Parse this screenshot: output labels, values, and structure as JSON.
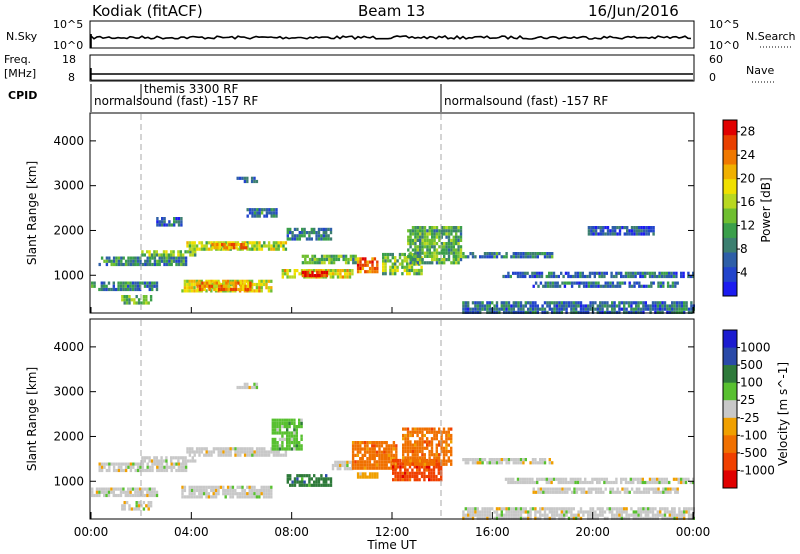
{
  "header": {
    "station": "Kodiak (fitACF)",
    "beam": "Beam 13",
    "date": "16/Jun/2016"
  },
  "sky_panel": {
    "left_label": "N.Sky",
    "left_ticks": [
      "10^5",
      "10^0"
    ],
    "right_ticks": [
      "10^5",
      "10^0"
    ],
    "right_label": "N.Search"
  },
  "freq_panel": {
    "left_label_1": "Freq.",
    "left_label_2": "[MHz]",
    "left_ticks": [
      "18",
      "8"
    ],
    "right_ticks": [
      "60",
      "0"
    ],
    "right_label": "Nave"
  },
  "cpid_panel": {
    "label": "CPID",
    "programs": [
      {
        "name": "normalsound (fast) -157 RF",
        "start_hour": 0.0
      },
      {
        "name": "themis 3300 RF",
        "start_hour": 2.0
      },
      {
        "name": "normalsound (fast) -157 RF",
        "start_hour": 14.0
      }
    ]
  },
  "chart_data": [
    {
      "type": "heatmap",
      "panel": "power",
      "xlabel": "",
      "ylabel": "Slant Range [km]",
      "xlim_hours": [
        0,
        24
      ],
      "ylim": [
        180,
        4600
      ],
      "y_ticks": [
        1000,
        2000,
        3000,
        4000
      ],
      "colorbar": {
        "label": "Power [dB]",
        "ticks": [
          4,
          8,
          12,
          16,
          20,
          24,
          28
        ],
        "range": [
          0,
          30
        ],
        "colors": [
          "#1c1cf0",
          "#2244cc",
          "#2e5fa8",
          "#3c7f70",
          "#3a9f4a",
          "#6fbf30",
          "#b8d820",
          "#f0e000",
          "#f0b000",
          "#f07800",
          "#e84000",
          "#e00000"
        ]
      },
      "regions": [
        {
          "t0": 0.0,
          "t1": 2.6,
          "r0": 680,
          "r1": 860,
          "level": 8
        },
        {
          "t0": 1.2,
          "t1": 2.4,
          "r0": 360,
          "r1": 560,
          "level": 12
        },
        {
          "t0": 0.3,
          "t1": 3.8,
          "r0": 1260,
          "r1": 1420,
          "level": 9
        },
        {
          "t0": 2.0,
          "t1": 4.2,
          "r0": 1420,
          "r1": 1560,
          "level": 14
        },
        {
          "t0": 3.6,
          "t1": 7.2,
          "r0": 640,
          "r1": 900,
          "level": 18
        },
        {
          "t0": 4.2,
          "t1": 6.4,
          "r0": 700,
          "r1": 860,
          "level": 22
        },
        {
          "t0": 3.8,
          "t1": 7.8,
          "r0": 1560,
          "r1": 1760,
          "level": 16
        },
        {
          "t0": 4.8,
          "t1": 6.2,
          "r0": 1600,
          "r1": 1720,
          "level": 22
        },
        {
          "t0": 7.6,
          "t1": 10.4,
          "r0": 960,
          "r1": 1140,
          "level": 18
        },
        {
          "t0": 8.4,
          "t1": 9.4,
          "r0": 1000,
          "r1": 1100,
          "level": 28
        },
        {
          "t0": 8.4,
          "t1": 10.6,
          "r0": 1260,
          "r1": 1460,
          "level": 12
        },
        {
          "t0": 7.8,
          "t1": 9.6,
          "r0": 1800,
          "r1": 2060,
          "level": 8
        },
        {
          "t0": 10.6,
          "t1": 11.4,
          "r0": 1100,
          "r1": 1400,
          "level": 24
        },
        {
          "t0": 11.6,
          "t1": 13.2,
          "r0": 1000,
          "r1": 1500,
          "level": 14
        },
        {
          "t0": 12.6,
          "t1": 14.8,
          "r0": 1300,
          "r1": 2100,
          "level": 12
        },
        {
          "t0": 14.8,
          "t1": 18.4,
          "r0": 1380,
          "r1": 1520,
          "level": 8
        },
        {
          "t0": 16.4,
          "t1": 24.0,
          "r0": 960,
          "r1": 1080,
          "level": 7
        },
        {
          "t0": 17.6,
          "t1": 23.4,
          "r0": 760,
          "r1": 860,
          "level": 7
        },
        {
          "t0": 14.8,
          "t1": 24.0,
          "r0": 200,
          "r1": 420,
          "level": 7
        },
        {
          "t0": 6.2,
          "t1": 7.4,
          "r0": 2300,
          "r1": 2500,
          "level": 8
        },
        {
          "t0": 5.8,
          "t1": 6.6,
          "r0": 3060,
          "r1": 3200,
          "level": 9
        },
        {
          "t0": 2.6,
          "t1": 3.6,
          "r0": 2100,
          "r1": 2300,
          "level": 6
        },
        {
          "t0": 19.8,
          "t1": 22.4,
          "r0": 1900,
          "r1": 2100,
          "level": 5
        }
      ]
    },
    {
      "type": "heatmap",
      "panel": "velocity",
      "xlabel": "Time UT",
      "ylabel": "Slant Range [km]",
      "xlim_hours": [
        0,
        24
      ],
      "x_ticks": [
        "00:00",
        "04:00",
        "08:00",
        "12:00",
        "16:00",
        "20:00",
        "00:00"
      ],
      "ylim": [
        180,
        4600
      ],
      "y_ticks": [
        1000,
        2000,
        3000,
        4000
      ],
      "colorbar": {
        "label": "Velocity [m s^-1]",
        "ticks": [
          "1000",
          "500",
          "100",
          "25",
          "-25",
          "-100",
          "-500",
          "-1000"
        ],
        "colors": [
          "#1c1cd0",
          "#2a4aa8",
          "#2e7a3a",
          "#58c030",
          "#c8c8c8",
          "#f0a000",
          "#f07000",
          "#f04000",
          "#e00000"
        ]
      },
      "regions": [
        {
          "t0": 0.0,
          "t1": 2.6,
          "r0": 680,
          "r1": 860,
          "c": 4
        },
        {
          "t0": 1.2,
          "t1": 2.4,
          "r0": 360,
          "r1": 560,
          "c": 4
        },
        {
          "t0": 0.3,
          "t1": 3.8,
          "r0": 1260,
          "r1": 1420,
          "c": 4
        },
        {
          "t0": 2.0,
          "t1": 4.2,
          "r0": 1420,
          "r1": 1560,
          "c": 4
        },
        {
          "t0": 3.6,
          "t1": 7.2,
          "r0": 640,
          "r1": 900,
          "c": 4
        },
        {
          "t0": 3.8,
          "t1": 7.8,
          "r0": 1560,
          "r1": 1760,
          "c": 4
        },
        {
          "t0": 7.2,
          "t1": 8.4,
          "r0": 1700,
          "r1": 2400,
          "c": 3
        },
        {
          "t0": 7.8,
          "t1": 9.6,
          "r0": 900,
          "r1": 1160,
          "c": 2
        },
        {
          "t0": 9.6,
          "t1": 10.4,
          "r0": 1260,
          "r1": 1460,
          "c": 4
        },
        {
          "t0": 10.4,
          "t1": 12.2,
          "r0": 1300,
          "r1": 1900,
          "c": 6
        },
        {
          "t0": 12.0,
          "t1": 14.0,
          "r0": 1000,
          "r1": 1500,
          "c": 7
        },
        {
          "t0": 12.4,
          "t1": 14.4,
          "r0": 1400,
          "r1": 2200,
          "c": 6
        },
        {
          "t0": 14.8,
          "t1": 18.4,
          "r0": 1380,
          "r1": 1520,
          "c": 4
        },
        {
          "t0": 16.4,
          "t1": 24.0,
          "r0": 960,
          "r1": 1080,
          "c": 4
        },
        {
          "t0": 17.6,
          "t1": 23.4,
          "r0": 760,
          "r1": 860,
          "c": 4
        },
        {
          "t0": 14.8,
          "t1": 24.0,
          "r0": 200,
          "r1": 420,
          "c": 4
        },
        {
          "t0": 5.8,
          "t1": 6.6,
          "r0": 3060,
          "r1": 3200,
          "c": 4
        },
        {
          "t0": 10.6,
          "t1": 11.4,
          "r0": 1100,
          "r1": 1200,
          "c": 5
        }
      ]
    }
  ],
  "footer": {
    "xlabel": "Time UT"
  }
}
